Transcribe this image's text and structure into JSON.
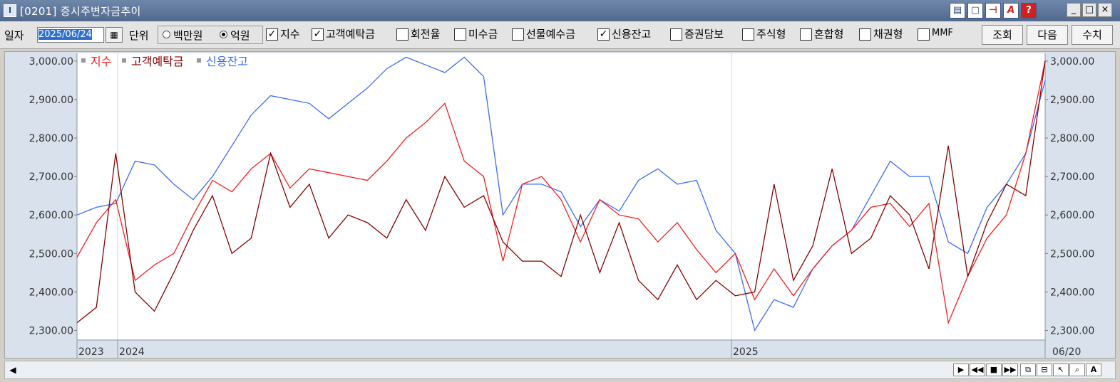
{
  "window": {
    "title": "[0201] 증시주변자금추이",
    "title_buttons": [
      "layout-icon",
      "window-icon",
      "pin-icon",
      "font-icon",
      "help-icon"
    ],
    "minimize": "_",
    "restore": "□",
    "close": "×"
  },
  "toolbar": {
    "date_label": "일자",
    "date_value": "2025/06/24",
    "unit_label": "단위",
    "unit_options": [
      "백만원",
      "억원"
    ],
    "unit_selected": "억원",
    "checkboxes": [
      {
        "label": "지수",
        "checked": true
      },
      {
        "label": "고객예탁금",
        "checked": true
      },
      {
        "label": "회전율",
        "checked": false
      },
      {
        "label": "미수금",
        "checked": false
      },
      {
        "label": "선물예수금",
        "checked": false
      },
      {
        "label": "신용잔고",
        "checked": true
      },
      {
        "label": "증권담보",
        "checked": false
      },
      {
        "label": "주식형",
        "checked": false
      },
      {
        "label": "혼합형",
        "checked": false
      },
      {
        "label": "채권형",
        "checked": false
      },
      {
        "label": "MMF",
        "checked": false
      }
    ],
    "buttons": {
      "query": "조회",
      "next": "다음",
      "values": "수치"
    }
  },
  "chart_data": {
    "type": "line",
    "legend": [
      {
        "name": "지수",
        "color": "#ff1a1a"
      },
      {
        "name": "고객예탁금",
        "color": "#8b0000"
      },
      {
        "name": "신용잔고",
        "color": "#3a6bff"
      }
    ],
    "y_ticks": [
      "3,000.00",
      "2,900.00",
      "2,800.00",
      "2,700.00",
      "2,600.00",
      "2,500.00",
      "2,400.00",
      "2,300.00"
    ],
    "ylim": [
      2275,
      3020
    ],
    "x_ticks": [
      "2023",
      "2024",
      "2025"
    ],
    "x_last_label": "06/20",
    "series": [
      {
        "name": "신용잔고",
        "color": "#3a6bff",
        "x": [
          0,
          0.02,
          0.04,
          0.06,
          0.08,
          0.1,
          0.12,
          0.14,
          0.16,
          0.18,
          0.2,
          0.22,
          0.24,
          0.26,
          0.28,
          0.3,
          0.32,
          0.34,
          0.36,
          0.38,
          0.4,
          0.42,
          0.44,
          0.46,
          0.48,
          0.5,
          0.52,
          0.54,
          0.56,
          0.58,
          0.6,
          0.62,
          0.64,
          0.66,
          0.68,
          0.7,
          0.72,
          0.74,
          0.76,
          0.78,
          0.8,
          0.82,
          0.84,
          0.86,
          0.88,
          0.9,
          0.92,
          0.94,
          0.96,
          0.98,
          1
        ],
        "values": [
          2600,
          2620,
          2630,
          2740,
          2730,
          2680,
          2640,
          2700,
          2780,
          2860,
          2910,
          2900,
          2890,
          2850,
          2890,
          2930,
          2980,
          3010,
          2990,
          2970,
          3010,
          2960,
          2600,
          2680,
          2680,
          2660,
          2570,
          2640,
          2610,
          2690,
          2720,
          2680,
          2690,
          2560,
          2500,
          2300,
          2380,
          2360,
          2460,
          2520,
          2560,
          2650,
          2740,
          2700,
          2700,
          2530,
          2500,
          2620,
          2680,
          2760,
          2950
        ]
      },
      {
        "name": "지수",
        "color": "#ff1a1a",
        "x": [
          0,
          0.02,
          0.04,
          0.06,
          0.08,
          0.1,
          0.12,
          0.14,
          0.16,
          0.18,
          0.2,
          0.22,
          0.24,
          0.26,
          0.28,
          0.3,
          0.32,
          0.34,
          0.36,
          0.38,
          0.4,
          0.42,
          0.44,
          0.46,
          0.48,
          0.5,
          0.52,
          0.54,
          0.56,
          0.58,
          0.6,
          0.62,
          0.64,
          0.66,
          0.68,
          0.7,
          0.72,
          0.74,
          0.76,
          0.78,
          0.8,
          0.82,
          0.84,
          0.86,
          0.88,
          0.9,
          0.92,
          0.94,
          0.96,
          0.98,
          1
        ],
        "values": [
          2490,
          2580,
          2640,
          2430,
          2470,
          2500,
          2600,
          2690,
          2660,
          2720,
          2760,
          2670,
          2720,
          2710,
          2700,
          2690,
          2740,
          2800,
          2840,
          2890,
          2740,
          2700,
          2480,
          2680,
          2700,
          2640,
          2530,
          2640,
          2600,
          2590,
          2530,
          2580,
          2510,
          2450,
          2500,
          2380,
          2460,
          2390,
          2460,
          2520,
          2560,
          2620,
          2630,
          2570,
          2630,
          2320,
          2440,
          2540,
          2600,
          2760,
          3000
        ]
      },
      {
        "name": "고객예탁금",
        "color": "#8b0000",
        "x": [
          0,
          0.02,
          0.04,
          0.06,
          0.08,
          0.1,
          0.12,
          0.14,
          0.16,
          0.18,
          0.2,
          0.22,
          0.24,
          0.26,
          0.28,
          0.3,
          0.32,
          0.34,
          0.36,
          0.38,
          0.4,
          0.42,
          0.44,
          0.46,
          0.48,
          0.5,
          0.52,
          0.54,
          0.56,
          0.58,
          0.6,
          0.62,
          0.64,
          0.66,
          0.68,
          0.7,
          0.72,
          0.74,
          0.76,
          0.78,
          0.8,
          0.82,
          0.84,
          0.86,
          0.88,
          0.9,
          0.92,
          0.94,
          0.96,
          0.98,
          1
        ],
        "values": [
          2320,
          2360,
          2760,
          2400,
          2350,
          2450,
          2560,
          2650,
          2500,
          2540,
          2760,
          2620,
          2680,
          2540,
          2600,
          2580,
          2540,
          2640,
          2560,
          2700,
          2620,
          2650,
          2530,
          2480,
          2480,
          2440,
          2600,
          2450,
          2580,
          2430,
          2380,
          2470,
          2380,
          2430,
          2390,
          2400,
          2680,
          2430,
          2520,
          2720,
          2500,
          2540,
          2650,
          2600,
          2460,
          2780,
          2440,
          2580,
          2680,
          2650,
          3000
        ]
      }
    ]
  }
}
